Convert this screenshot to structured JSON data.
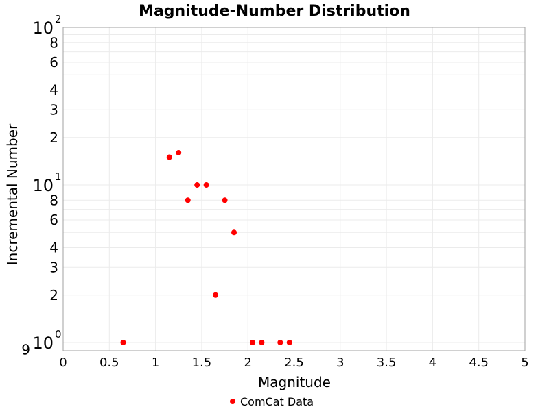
{
  "chart_data": {
    "type": "scatter",
    "title": "Magnitude-Number Distribution",
    "xlabel": "Magnitude",
    "ylabel": "Incremental Number",
    "xlim": [
      0,
      5
    ],
    "ylim": [
      0.9,
      100
    ],
    "yscale": "log",
    "grid": true,
    "legend_position": "bottom",
    "x_ticks": [
      "0",
      "0.5",
      "1",
      "1.5",
      "2",
      "2.5",
      "3",
      "3.5",
      "4",
      "4.5",
      "5"
    ],
    "y_minor_labels": [
      {
        "value": 2,
        "label": "2"
      },
      {
        "value": 3,
        "label": "3"
      },
      {
        "value": 4,
        "label": "4"
      },
      {
        "value": 6,
        "label": "6"
      },
      {
        "value": 8,
        "label": "8"
      },
      {
        "value": 20,
        "label": "2"
      },
      {
        "value": 30,
        "label": "3"
      },
      {
        "value": 40,
        "label": "4"
      },
      {
        "value": 60,
        "label": "6"
      },
      {
        "value": 80,
        "label": "8"
      },
      {
        "value": 0.9,
        "label": "9"
      }
    ],
    "y_major_labels": [
      {
        "value": 1,
        "base": "10",
        "exp": "0"
      },
      {
        "value": 10,
        "base": "10",
        "exp": "1"
      },
      {
        "value": 100,
        "base": "10",
        "exp": "2"
      }
    ],
    "series": [
      {
        "name": "ComCat Data",
        "color": "#ff0000",
        "x": [
          0.65,
          1.15,
          1.25,
          1.35,
          1.45,
          1.55,
          1.65,
          1.75,
          1.85,
          2.05,
          2.15,
          2.35,
          2.45
        ],
        "y": [
          1,
          15,
          16,
          8,
          10,
          10,
          2,
          8,
          5,
          1,
          1,
          1,
          1
        ]
      }
    ]
  }
}
